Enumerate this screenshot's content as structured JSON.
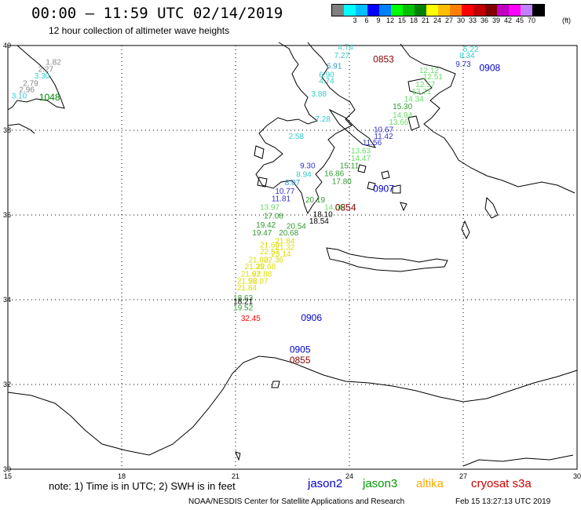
{
  "title": "00:00 – 11:59 UTC 02/14/2019",
  "subtitle": "12 hour collection of altimeter wave heights",
  "colorbar": {
    "colors": [
      "#7f7f7f",
      "#00ffff",
      "#00bfff",
      "#0000ff",
      "#0080ff",
      "#00ff00",
      "#00c000",
      "#008000",
      "#ffff00",
      "#ffbf00",
      "#ff8000",
      "#ff0000",
      "#c00000",
      "#800000",
      "#c000c0",
      "#ff00ff",
      "#c080ff",
      "#000000"
    ],
    "ticks": [
      "3",
      "6",
      "9",
      "12",
      "15",
      "18",
      "21",
      "24",
      "27",
      "30",
      "33",
      "36",
      "39",
      "42",
      "45",
      "70"
    ],
    "unit": "(ft)"
  },
  "axes": {
    "lon_ticks": [
      "15",
      "18",
      "21",
      "24",
      "27",
      "30"
    ],
    "lat_ticks": [
      "40",
      "38",
      "36",
      "34",
      "32",
      "30"
    ]
  },
  "legend": {
    "jason2": {
      "label": "jason2",
      "color": "#0000cc"
    },
    "jason3": {
      "label": "jason3",
      "color": "#009900"
    },
    "altika": {
      "label": "altika",
      "color": "#ffaa00"
    },
    "cryosat": {
      "label": "cryosat s3a",
      "color": "#cc0000"
    }
  },
  "note": "note:  1) Time is in UTC;  2) SWH is in feet",
  "footer": "NOAA/NESDIS Center for Satellite Applications and Research",
  "footer_time": "Feb 15 13:27:13 UTC 2019",
  "chart_data": {
    "type": "map",
    "lon_range": [
      15,
      30
    ],
    "lat_range": [
      30,
      40
    ],
    "pass_times": [
      {
        "text": "0853",
        "lon": 24.9,
        "lat": 39.6,
        "color": "#880000"
      },
      {
        "text": "0908",
        "lon": 27.7,
        "lat": 39.4,
        "color": "#0000cc"
      },
      {
        "text": "1048",
        "lon": 16.1,
        "lat": 38.7,
        "color": "#008800"
      },
      {
        "text": "0907",
        "lon": 24.9,
        "lat": 36.55,
        "color": "#0000cc"
      },
      {
        "text": "0854",
        "lon": 23.9,
        "lat": 36.1,
        "color": "#880000"
      },
      {
        "text": "0906",
        "lon": 23.0,
        "lat": 33.5,
        "color": "#0000cc"
      },
      {
        "text": "0905",
        "lon": 22.7,
        "lat": 32.75,
        "color": "#0000cc"
      },
      {
        "text": "0855",
        "lon": 22.7,
        "lat": 32.5,
        "color": "#880000"
      }
    ],
    "swh_values": [
      {
        "v": "4.74",
        "lon": 23.9,
        "lat": 39.9,
        "c": "#33cccc"
      },
      {
        "v": "7.27",
        "lon": 23.8,
        "lat": 39.7,
        "c": "#33cccc"
      },
      {
        "v": "6.91",
        "lon": 23.6,
        "lat": 39.45,
        "c": "#3399cc"
      },
      {
        "v": "6.90",
        "lon": 23.4,
        "lat": 39.25,
        "c": "#33cccc"
      },
      {
        "v": "4.74",
        "lon": 23.4,
        "lat": 39.1,
        "c": "#33cccc"
      },
      {
        "v": "3.88",
        "lon": 23.2,
        "lat": 38.8,
        "c": "#33cccc"
      },
      {
        "v": "7.28",
        "lon": 23.3,
        "lat": 38.2,
        "c": "#33cccc"
      },
      {
        "v": "5.22",
        "lon": 27.2,
        "lat": 39.85,
        "c": "#33cccc"
      },
      {
        "v": "8.34",
        "lon": 27.1,
        "lat": 39.7,
        "c": "#33cccc"
      },
      {
        "v": "9.73",
        "lon": 27.0,
        "lat": 39.5,
        "c": "#3333cc"
      },
      {
        "v": "12.12",
        "lon": 26.1,
        "lat": 39.35,
        "c": "#66dd66"
      },
      {
        "v": "12.51",
        "lon": 26.2,
        "lat": 39.2,
        "c": "#66dd66"
      },
      {
        "v": "12.57",
        "lon": 26.0,
        "lat": 39.02,
        "c": "#66dd66"
      },
      {
        "v": "13.71",
        "lon": 25.9,
        "lat": 38.85,
        "c": "#66dd66"
      },
      {
        "v": "14.34",
        "lon": 25.7,
        "lat": 38.68,
        "c": "#66dd66"
      },
      {
        "v": "15.30",
        "lon": 25.4,
        "lat": 38.5,
        "c": "#339933"
      },
      {
        "v": "14.94",
        "lon": 25.4,
        "lat": 38.3,
        "c": "#66dd66"
      },
      {
        "v": "13.66",
        "lon": 25.3,
        "lat": 38.13,
        "c": "#66dd66"
      },
      {
        "v": "10.67",
        "lon": 24.9,
        "lat": 37.95,
        "c": "#3333cc"
      },
      {
        "v": "11.42",
        "lon": 24.9,
        "lat": 37.8,
        "c": "#3333cc"
      },
      {
        "v": "11.56",
        "lon": 24.6,
        "lat": 37.65,
        "c": "#3333cc"
      },
      {
        "v": "13.63",
        "lon": 24.3,
        "lat": 37.45,
        "c": "#66dd66"
      },
      {
        "v": "14.47",
        "lon": 24.3,
        "lat": 37.28,
        "c": "#66dd66"
      },
      {
        "v": "15.11",
        "lon": 24.0,
        "lat": 37.1,
        "c": "#339933"
      },
      {
        "v": "16.86",
        "lon": 23.6,
        "lat": 36.92,
        "c": "#339933"
      },
      {
        "v": "17.80",
        "lon": 23.8,
        "lat": 36.73,
        "c": "#339933"
      },
      {
        "v": "9.30",
        "lon": 22.9,
        "lat": 37.1,
        "c": "#3333cc"
      },
      {
        "v": "8.94",
        "lon": 22.8,
        "lat": 36.9,
        "c": "#33cccc"
      },
      {
        "v": "8.07",
        "lon": 22.5,
        "lat": 36.7,
        "c": "#3399cc"
      },
      {
        "v": "10.77",
        "lon": 22.3,
        "lat": 36.5,
        "c": "#3333cc"
      },
      {
        "v": "11.81",
        "lon": 22.2,
        "lat": 36.32,
        "c": "#3333cc"
      },
      {
        "v": "20.19",
        "lon": 23.1,
        "lat": 36.3,
        "c": "#339933"
      },
      {
        "v": "14.06",
        "lon": 23.6,
        "lat": 36.12,
        "c": "#66dd66"
      },
      {
        "v": "13.97",
        "lon": 21.9,
        "lat": 36.12,
        "c": "#66dd66"
      },
      {
        "v": "18.10",
        "lon": 23.3,
        "lat": 35.95,
        "c": "#000000"
      },
      {
        "v": "17.08",
        "lon": 22.0,
        "lat": 35.92,
        "c": "#339933"
      },
      {
        "v": "18.54",
        "lon": 23.2,
        "lat": 35.8,
        "c": "#000000"
      },
      {
        "v": "19.42",
        "lon": 21.8,
        "lat": 35.7,
        "c": "#339933"
      },
      {
        "v": "20.54",
        "lon": 22.6,
        "lat": 35.68,
        "c": "#339933"
      },
      {
        "v": "19.47",
        "lon": 21.7,
        "lat": 35.52,
        "c": "#339933"
      },
      {
        "v": "20.68",
        "lon": 22.4,
        "lat": 35.52,
        "c": "#339933"
      },
      {
        "v": "21.84",
        "lon": 22.3,
        "lat": 35.32,
        "c": "#dddd00"
      },
      {
        "v": "21.32",
        "lon": 22.3,
        "lat": 35.18,
        "c": "#dddd00"
      },
      {
        "v": "21.60",
        "lon": 21.9,
        "lat": 35.23,
        "c": "#dddd00"
      },
      {
        "v": "22.57",
        "lon": 21.9,
        "lat": 35.07,
        "c": "#dddd00"
      },
      {
        "v": "23.14",
        "lon": 22.2,
        "lat": 35.02,
        "c": "#dddd00"
      },
      {
        "v": "21.80",
        "lon": 21.6,
        "lat": 34.88,
        "c": "#dddd00"
      },
      {
        "v": "22.36",
        "lon": 22.0,
        "lat": 34.88,
        "c": "#dddd00"
      },
      {
        "v": "21.35",
        "lon": 21.5,
        "lat": 34.72,
        "c": "#dddd00"
      },
      {
        "v": "22.68",
        "lon": 21.8,
        "lat": 34.72,
        "c": "#dddd00"
      },
      {
        "v": "21.67",
        "lon": 21.4,
        "lat": 34.55,
        "c": "#dddd00"
      },
      {
        "v": "22.88",
        "lon": 21.7,
        "lat": 34.55,
        "c": "#dddd00"
      },
      {
        "v": "21.56",
        "lon": 21.3,
        "lat": 34.38,
        "c": "#dddd00"
      },
      {
        "v": "22.07",
        "lon": 21.6,
        "lat": 34.38,
        "c": "#dddd00"
      },
      {
        "v": "21.84",
        "lon": 21.3,
        "lat": 34.22,
        "c": "#dddd00"
      },
      {
        "v": "18.63",
        "lon": 21.2,
        "lat": 33.98,
        "c": "#339933"
      },
      {
        "v": "18.21",
        "lon": 21.2,
        "lat": 33.9,
        "c": "#000000"
      },
      {
        "v": "19.52",
        "lon": 21.2,
        "lat": 33.75,
        "c": "#339933"
      },
      {
        "v": "32.45",
        "lon": 21.4,
        "lat": 33.5,
        "c": "#ff0000"
      },
      {
        "v": "1.82",
        "lon": 16.2,
        "lat": 39.55,
        "c": "#888888"
      },
      {
        "v": "2.27",
        "lon": 16.0,
        "lat": 39.38,
        "c": "#888888"
      },
      {
        "v": "3.30",
        "lon": 15.9,
        "lat": 39.22,
        "c": "#33cccc"
      },
      {
        "v": "2.79",
        "lon": 15.6,
        "lat": 39.05,
        "c": "#888888"
      },
      {
        "v": "2.96",
        "lon": 15.5,
        "lat": 38.9,
        "c": "#888888"
      },
      {
        "v": "3.10",
        "lon": 15.3,
        "lat": 38.75,
        "c": "#33cccc"
      },
      {
        "v": "2.58",
        "lon": 22.6,
        "lat": 37.8,
        "c": "#33cccc"
      }
    ]
  }
}
